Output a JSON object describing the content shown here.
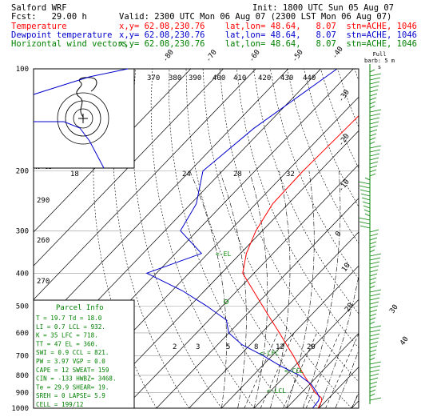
{
  "header": {
    "model": "Salford WRF",
    "forecast": "Fcst:   29.00 h",
    "init": "Init: 1800 UTC Sun 05 Aug 07",
    "valid": "Valid: 2300 UTC Mon 06 Aug 07 (2300 LST Mon 06 Aug 07)",
    "temp_label": "Temperature",
    "temp_loc": "x,y= 62.08,230.76    lat,lon= 48.64,   8.07  stn=ACHE, 1046",
    "dew_label": "Dewpoint temperature",
    "dew_loc": "x,y= 62.08,230.76    lat,lon= 48.64,   8.07  stn=ACHE, 1046",
    "wind_label": "Horizontal wind vectors",
    "wind_loc": "x,y= 62.08,230.76    lat,lon= 48.64,   8.07  stn=ACHE, 1046"
  },
  "colors": {
    "temperature": "#ff0000",
    "dewpoint": "#0000cc",
    "wind": "#008000",
    "text": "#000000"
  },
  "hodograph": {
    "kts_label": "k ts",
    "speed_ticks": [
      "370",
      "380",
      "390",
      "400",
      "410",
      "420",
      "430",
      "440"
    ]
  },
  "barb_key": "Full barb:\n5 m s",
  "wind_barbs_label": "Full barb: 5 m s",
  "parcel": {
    "title": "Parcel Info",
    "rows": [
      "T     =   19.7  Td =  18.0",
      "LI    =    0.7  LCL =  932.",
      "K     =     35  LFC =  718.",
      "TT    =     47  EL  =  360.",
      "SWI   =    0.9  CCL =  821.",
      "PW    =   3.97  VGP =   0.0",
      "CAPE  =     12  SWEAT=  159",
      "CIN   =   -133  HWBZ= 3468.",
      "Te    =   29.9  SHEAR=  19.",
      "SREH  =      0  LAPSE=  5.9",
      "CELL  = 199/12"
    ]
  },
  "chart_data": {
    "type": "line",
    "title": "Salford WRF",
    "ylabel": "",
    "y_scale": "log-pressure (inverted)",
    "ylim": [
      1000,
      100
    ],
    "y_ticks": [
      100,
      200,
      300,
      400,
      500,
      600,
      700,
      800,
      900,
      1000
    ],
    "isotherm_labels": [
      "-80",
      "-70",
      "-60",
      "-50",
      "-40",
      "-30",
      "-20",
      "-10",
      "0",
      "10",
      "20",
      "30",
      "40"
    ],
    "mixing_ratio_labels": [
      "2",
      "3",
      "5",
      "8",
      "12",
      "20"
    ],
    "theta_labels": [
      "18",
      "24",
      "28",
      "32"
    ],
    "annotations": [
      "<-EL",
      "<-LFC",
      "<-CCL",
      "<-LCL"
    ],
    "series": [
      {
        "name": "Temperature",
        "x": [
          19.7,
          18.6,
          17.5,
          14.2,
          10.1,
          5.6,
          1.2,
          -3.5,
          -8.8,
          -14.5,
          -20.8,
          -27.6,
          -35.1,
          -43.5,
          -48.2,
          -52.0,
          -54.8,
          -55.2,
          -54.6,
          -53.8
        ],
        "y": [
          1000,
          950,
          930,
          900,
          850,
          800,
          750,
          700,
          650,
          600,
          550,
          500,
          450,
          400,
          350,
          300,
          250,
          200,
          150,
          100
        ]
      },
      {
        "name": "Dewpoint temperature",
        "x": [
          18.0,
          17.6,
          16.9,
          14.8,
          10.5,
          4.2,
          -4.5,
          -12.8,
          -22.5,
          -30.1,
          -34.6,
          -44.8,
          -57.0,
          -73.0,
          -62.0,
          -75.2,
          -78.3,
          -86.0,
          -83.0,
          -75.0
        ],
        "y": [
          1000,
          950,
          930,
          900,
          850,
          800,
          750,
          700,
          650,
          600,
          550,
          500,
          450,
          400,
          350,
          300,
          250,
          200,
          150,
          100
        ]
      }
    ]
  }
}
